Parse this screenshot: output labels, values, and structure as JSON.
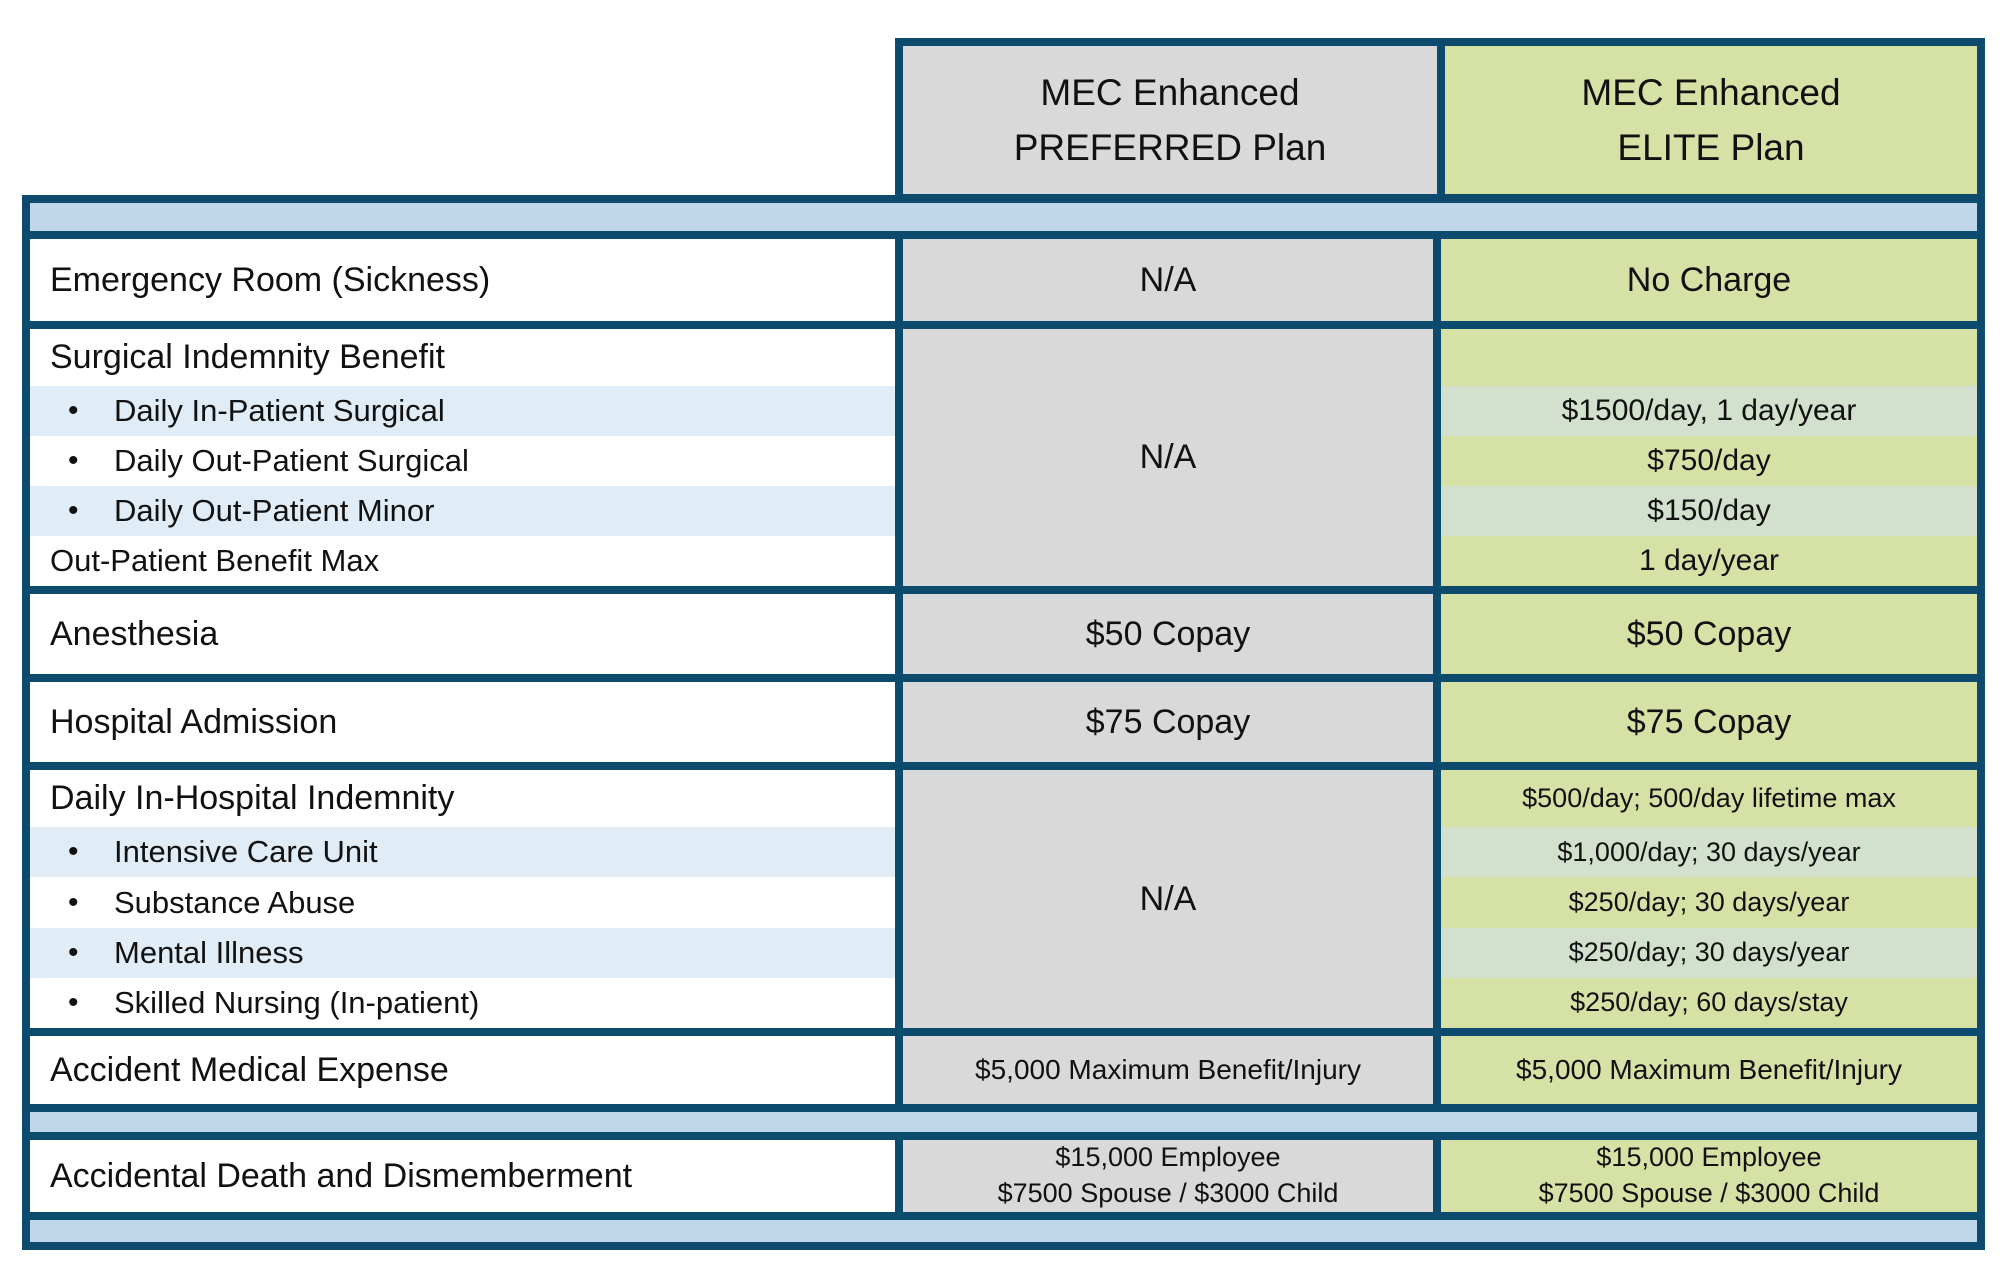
{
  "colors": {
    "border_navy": "#0c4a6e",
    "band_blue": "#bfd7e8",
    "row_stripe_blue": "#e1edf6",
    "preferred_column_gray": "#d9d9d9",
    "elite_column_green": "#d6e1a6",
    "elite_stripe_green": "#d2e0cd"
  },
  "glyphs": {
    "bullet": "•"
  },
  "chart_data": {
    "type": "table",
    "columns": {
      "preferred": {
        "line1": "MEC Enhanced",
        "line2": "PREFERRED Plan"
      },
      "elite": {
        "line1": "MEC Enhanced",
        "line2": "ELITE Plan"
      }
    },
    "rows": [
      {
        "label": "Emergency Room (Sickness)",
        "preferred": "N/A",
        "elite": "No Charge"
      },
      {
        "label": "Surgical Indemnity Benefit",
        "bullets": [
          "Daily In-Patient Surgical",
          "Daily Out-Patient Surgical",
          "Daily Out-Patient Minor"
        ],
        "footer": "Out-Patient Benefit Max",
        "preferred": "N/A",
        "elite_lines": [
          "$1500/day, 1 day/year",
          "$750/day",
          "$150/day",
          "1 day/year"
        ]
      },
      {
        "label": "Anesthesia",
        "preferred": "$50 Copay",
        "elite": "$50 Copay"
      },
      {
        "label": "Hospital Admission",
        "preferred": "$75 Copay",
        "elite": "$75 Copay"
      },
      {
        "label": "Daily In-Hospital Indemnity",
        "bullets": [
          "Intensive Care Unit",
          "Substance Abuse",
          "Mental Illness",
          "Skilled Nursing (In-patient)"
        ],
        "preferred": "N/A",
        "elite_lines": [
          "$500/day; 500/day lifetime max",
          "$1,000/day; 30 days/year",
          "$250/day; 30 days/year",
          "$250/day; 30 days/year",
          "$250/day; 60 days/stay"
        ]
      },
      {
        "label": "Accident Medical Expense",
        "preferred": "$5,000 Maximum Benefit/Injury",
        "elite": "$5,000 Maximum Benefit/Injury"
      },
      {
        "label": "Accidental Death and Dismemberment",
        "preferred_lines": [
          "$15,000 Employee",
          "$7500 Spouse / $3000 Child"
        ],
        "elite_lines": [
          "$15,000 Employee",
          "$7500 Spouse / $3000 Child"
        ]
      }
    ]
  }
}
